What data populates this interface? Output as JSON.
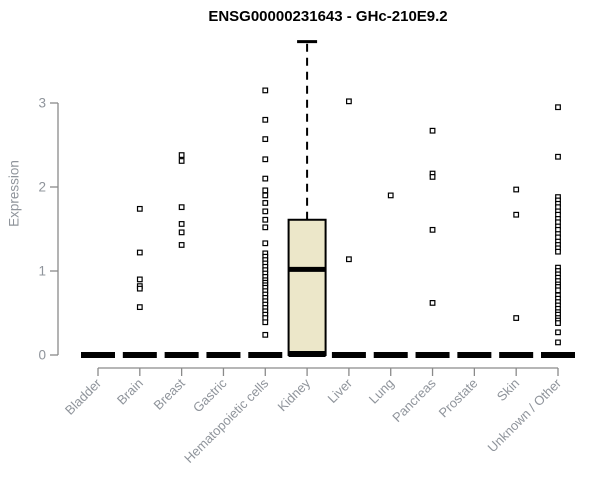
{
  "chart": {
    "title": "ENSG00000231643 - GHc-210E9.2",
    "ylabel": "Expression"
  },
  "colors": {
    "title_text": "#000000",
    "axis_line": "#8a8a8a",
    "axis_text": "#8f949b",
    "box_fill": "#ece7c9",
    "box_stroke": "#000000",
    "point_stroke": "#000000",
    "point_fill": "#ffffff",
    "background": "#ffffff"
  },
  "chart_data": {
    "type": "boxplot",
    "title": "ENSG00000231643 - GHc-210E9.2",
    "xlabel": "",
    "ylabel": "Expression",
    "ylim": [
      0,
      3.85
    ],
    "yticks": [
      0,
      1,
      2,
      3
    ],
    "grid": false,
    "legend": "none",
    "categories": [
      "Bladder",
      "Brain",
      "Breast",
      "Gastric",
      "Hematopoietic cells",
      "Kidney",
      "Liver",
      "Lung",
      "Pancreas",
      "Prostate",
      "Skin",
      "Unknown / Other"
    ],
    "series": [
      {
        "category": "Bladder",
        "whisker_low": 0,
        "q1": 0,
        "median": 0,
        "q3": 0,
        "whisker_high": 0,
        "outliers": []
      },
      {
        "category": "Brain",
        "whisker_low": 0,
        "q1": 0,
        "median": 0,
        "q3": 0,
        "whisker_high": 0,
        "outliers": [
          1.74,
          1.22,
          0.9,
          0.82,
          0.79,
          0.57
        ]
      },
      {
        "category": "Breast",
        "whisker_low": 0,
        "q1": 0,
        "median": 0,
        "q3": 0,
        "whisker_high": 0,
        "outliers": [
          2.38,
          2.31,
          1.76,
          1.56,
          1.46,
          1.31
        ]
      },
      {
        "category": "Gastric",
        "whisker_low": 0,
        "q1": 0,
        "median": 0,
        "q3": 0,
        "whisker_high": 0,
        "outliers": []
      },
      {
        "category": "Hematopoietic cells",
        "whisker_low": 0,
        "q1": 0,
        "median": 0,
        "q3": 0,
        "whisker_high": 0,
        "outliers": [
          3.15,
          2.8,
          2.57,
          2.33,
          2.1,
          1.96,
          1.9,
          1.81,
          1.71,
          1.61,
          1.52,
          1.33,
          1.21,
          1.17,
          1.13,
          1.09,
          1.05,
          1.01,
          0.97,
          0.93,
          0.89,
          0.86,
          0.83,
          0.8,
          0.76,
          0.72,
          0.68,
          0.64,
          0.6,
          0.56,
          0.52,
          0.48,
          0.44,
          0.39,
          0.24
        ]
      },
      {
        "category": "Kidney",
        "whisker_low": 0,
        "q1": 0,
        "median": 1.02,
        "q3": 1.61,
        "whisker_high": 3.73,
        "outliers": []
      },
      {
        "category": "Liver",
        "whisker_low": 0,
        "q1": 0,
        "median": 0,
        "q3": 0,
        "whisker_high": 0,
        "outliers": [
          3.02,
          1.14
        ]
      },
      {
        "category": "Lung",
        "whisker_low": 0,
        "q1": 0,
        "median": 0,
        "q3": 0,
        "whisker_high": 0,
        "outliers": [
          1.9
        ]
      },
      {
        "category": "Pancreas",
        "whisker_low": 0,
        "q1": 0,
        "median": 0,
        "q3": 0,
        "whisker_high": 0,
        "outliers": [
          2.67,
          2.16,
          2.12,
          1.49,
          0.62
        ]
      },
      {
        "category": "Prostate",
        "whisker_low": 0,
        "q1": 0,
        "median": 0,
        "q3": 0,
        "whisker_high": 0,
        "outliers": []
      },
      {
        "category": "Skin",
        "whisker_low": 0,
        "q1": 0,
        "median": 0,
        "q3": 0,
        "whisker_high": 0,
        "outliers": [
          1.97,
          1.67,
          0.44
        ]
      },
      {
        "category": "Unknown / Other",
        "whisker_low": 0,
        "q1": 0,
        "median": 0,
        "q3": 0,
        "whisker_high": 0,
        "outliers": [
          2.95,
          2.36,
          1.88,
          1.84,
          1.8,
          1.76,
          1.71,
          1.67,
          1.62,
          1.58,
          1.53,
          1.49,
          1.44,
          1.4,
          1.35,
          1.31,
          1.27,
          1.23,
          1.04,
          1.0,
          0.96,
          0.92,
          0.88,
          0.84,
          0.81,
          0.77,
          0.71,
          0.67,
          0.63,
          0.59,
          0.55,
          0.51,
          0.48,
          0.44,
          0.41,
          0.38,
          0.27,
          0.15
        ]
      }
    ]
  }
}
